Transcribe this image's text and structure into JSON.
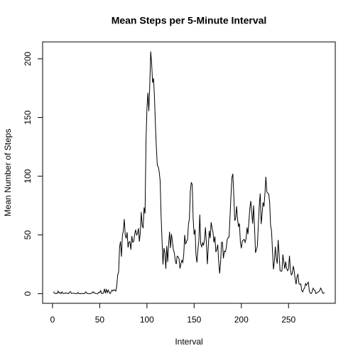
{
  "chart_data": {
    "type": "line",
    "title": "Mean Steps per 5-Minute Interval",
    "x_label": "Interval",
    "y_label": "Mean Number of Steps",
    "color": "#000000",
    "xlim": [
      -10.5,
      299.5
    ],
    "ylim": [
      -8.25,
      214.4
    ],
    "xticks": [
      0,
      50,
      100,
      150,
      200,
      250
    ],
    "yticks": [
      0,
      50,
      100,
      150,
      200
    ],
    "x": [
      1,
      2,
      3,
      4,
      5,
      6,
      7,
      8,
      9,
      10,
      11,
      12,
      13,
      14,
      15,
      16,
      17,
      18,
      19,
      20,
      21,
      22,
      23,
      24,
      25,
      26,
      27,
      28,
      29,
      30,
      31,
      32,
      33,
      34,
      35,
      36,
      37,
      38,
      39,
      40,
      41,
      42,
      43,
      44,
      45,
      46,
      47,
      48,
      49,
      50,
      51,
      52,
      53,
      54,
      55,
      56,
      57,
      58,
      59,
      60,
      61,
      62,
      63,
      64,
      65,
      66,
      67,
      68,
      69,
      70,
      71,
      72,
      73,
      74,
      75,
      76,
      77,
      78,
      79,
      80,
      81,
      82,
      83,
      84,
      85,
      86,
      87,
      88,
      89,
      90,
      91,
      92,
      93,
      94,
      95,
      96,
      97,
      98,
      99,
      100,
      101,
      102,
      103,
      104,
      105,
      106,
      107,
      108,
      109,
      110,
      111,
      112,
      113,
      114,
      115,
      116,
      117,
      118,
      119,
      120,
      121,
      122,
      123,
      124,
      125,
      126,
      127,
      128,
      129,
      130,
      131,
      132,
      133,
      134,
      135,
      136,
      137,
      138,
      139,
      140,
      141,
      142,
      143,
      144,
      145,
      146,
      147,
      148,
      149,
      150,
      151,
      152,
      153,
      154,
      155,
      156,
      157,
      158,
      159,
      160,
      161,
      162,
      163,
      164,
      165,
      166,
      167,
      168,
      169,
      170,
      171,
      172,
      173,
      174,
      175,
      176,
      177,
      178,
      179,
      180,
      181,
      182,
      183,
      184,
      185,
      186,
      187,
      188,
      189,
      190,
      191,
      192,
      193,
      194,
      195,
      196,
      197,
      198,
      199,
      200,
      201,
      202,
      203,
      204,
      205,
      206,
      207,
      208,
      209,
      210,
      211,
      212,
      213,
      214,
      215,
      216,
      217,
      218,
      219,
      220,
      221,
      222,
      223,
      224,
      225,
      226,
      227,
      228,
      229,
      230,
      231,
      232,
      233,
      234,
      235,
      236,
      237,
      238,
      239,
      240,
      241,
      242,
      243,
      244,
      245,
      246,
      247,
      248,
      249,
      250,
      251,
      252,
      253,
      254,
      255,
      256,
      257,
      258,
      259,
      260,
      261,
      262,
      263,
      264,
      265,
      266,
      267,
      268,
      269,
      270,
      271,
      272,
      273,
      274,
      275,
      276,
      277,
      278,
      279,
      280,
      281,
      282,
      283,
      284,
      285,
      286,
      287,
      288
    ],
    "values": [
      1.7,
      0.3,
      0.1,
      0.2,
      0.1,
      2.1,
      0.5,
      0.9,
      0,
      1.5,
      0.3,
      0.1,
      0.3,
      0.7,
      0.2,
      0.3,
      0,
      1.1,
      1.8,
      0.2,
      0.2,
      0.4,
      0.3,
      0,
      0,
      0,
      1.1,
      0,
      0,
      0.1,
      0,
      0.2,
      0,
      0,
      1.5,
      0.9,
      0,
      0,
      0,
      0,
      0.2,
      0.6,
      1.6,
      0.6,
      0.5,
      0.1,
      0,
      0,
      1.2,
      0.9,
      2.6,
      0,
      0.3,
      0.4,
      4.1,
      0.7,
      3.5,
      0.8,
      3.1,
      1.1,
      0,
      1.6,
      3,
      2.2,
      3.3,
      3,
      2.1,
      6.1,
      16,
      18.3,
      39.5,
      44.5,
      31.5,
      49.3,
      53.8,
      63.5,
      50,
      47.1,
      52.2,
      39.3,
      44,
      44.2,
      37.4,
      49,
      43.8,
      44.4,
      50.5,
      54.5,
      49.9,
      51,
      55.7,
      44.3,
      52.3,
      69.5,
      57.8,
      56.2,
      73.4,
      68.2,
      129.4,
      157.5,
      171.2,
      155.4,
      177.3,
      206.2,
      195.9,
      179.6,
      183.4,
      167,
      143.5,
      124,
      109.1,
      108.1,
      103.7,
      96,
      66.2,
      45.2,
      24.8,
      38.8,
      35,
      21.1,
      40.6,
      27,
      42.4,
      52.7,
      38.9,
      50.8,
      44.3,
      37.4,
      34.7,
      28.3,
      25.1,
      31.9,
      31.4,
      29.7,
      21.3,
      25.5,
      28.4,
      26.5,
      33.4,
      50,
      42,
      44.6,
      46,
      59.2,
      63.9,
      87.7,
      94.8,
      92.8,
      63.4,
      50.2,
      54.5,
      32.4,
      26.5,
      37.7,
      45.1,
      67.3,
      42.3,
      39.9,
      43.3,
      41,
      46.2,
      56.4,
      42.8,
      25.1,
      40,
      53.5,
      47.3,
      60.8,
      55.8,
      52,
      43.6,
      48.7,
      35.5,
      37.5,
      41.8,
      27.5,
      17.1,
      26.1,
      43.6,
      43.8,
      30,
      36.1,
      35.5,
      38.8,
      46,
      47.8,
      48.1,
      65.3,
      82.9,
      98.7,
      102.1,
      84,
      62.1,
      64.1,
      74.5,
      63.2,
      56.9,
      59.8,
      43.9,
      38.6,
      44.7,
      45.5,
      46.2,
      43.7,
      46.6,
      56.3,
      50.7,
      61.2,
      72.7,
      78.9,
      68.9,
      59.7,
      75.1,
      56.5,
      34.8,
      37.5,
      40.7,
      58,
      74.7,
      85.3,
      59.3,
      67.8,
      77.7,
      74.2,
      85.3,
      99.5,
      86.6,
      85.6,
      84.9,
      77.8,
      58,
      53.4,
      36.3,
      20.7,
      27.4,
      40,
      30.2,
      25.5,
      45.7,
      33.5,
      19.6,
      19,
      19.3,
      33.3,
      26.8,
      21.2,
      27.3,
      21.3,
      19.5,
      21.3,
      32.3,
      20.2,
      15.9,
      17.2,
      23.5,
      19.2,
      12.5,
      8,
      14.7,
      16.3,
      8.7,
      7.8,
      8.1,
      2.6,
      1.5,
      3.7,
      4.8,
      8.5,
      7.1,
      8.7,
      9.8,
      2.2,
      0.3,
      0.1,
      1.6,
      4.6,
      3.3,
      2.8,
      0,
      0.8,
      1,
      1.6,
      2.6,
      4.7,
      3.3,
      0.6,
      0.2,
      1.1
    ]
  }
}
